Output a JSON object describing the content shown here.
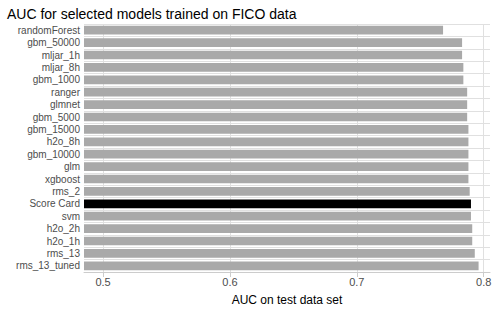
{
  "chart_data": {
    "type": "bar",
    "title": "AUC for selected models trained on FICO data",
    "orientation": "horizontal",
    "x_label": "AUC on test data set",
    "categories": [
      "randomForest",
      "gbm_50000",
      "mljar_1h",
      "mljar_8h",
      "gbm_1000",
      "ranger",
      "glmnet",
      "gbm_5000",
      "gbm_15000",
      "h2o_8h",
      "gbm_10000",
      "glm",
      "xgboost",
      "rms_2",
      "Score Card",
      "svm",
      "h2o_2h",
      "h2o_1h",
      "rms_13",
      "rms_13_tuned"
    ],
    "values": [
      0.768,
      0.783,
      0.783,
      0.784,
      0.784,
      0.787,
      0.787,
      0.787,
      0.788,
      0.788,
      0.788,
      0.788,
      0.788,
      0.789,
      0.79,
      0.79,
      0.791,
      0.791,
      0.793,
      0.796
    ],
    "colors": [
      "#a9a9a9",
      "#a9a9a9",
      "#a9a9a9",
      "#a9a9a9",
      "#a9a9a9",
      "#a9a9a9",
      "#a9a9a9",
      "#a9a9a9",
      "#a9a9a9",
      "#a9a9a9",
      "#a9a9a9",
      "#a9a9a9",
      "#a9a9a9",
      "#a9a9a9",
      "#000000",
      "#a9a9a9",
      "#a9a9a9",
      "#a9a9a9",
      "#a9a9a9",
      "#a9a9a9"
    ],
    "xlim": [
      0.485,
      0.805
    ],
    "xticks": [
      0.5,
      0.6,
      0.7,
      0.8
    ],
    "grid": true
  }
}
